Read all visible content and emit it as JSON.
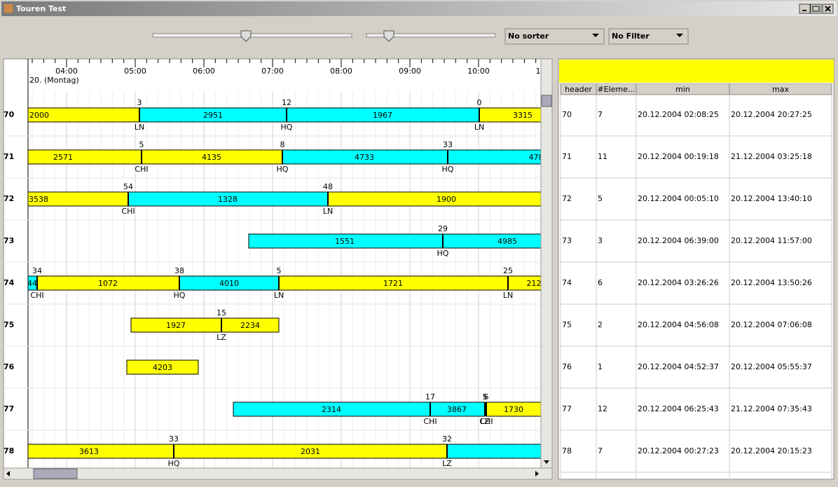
{
  "window": {
    "title": "Touren Test"
  },
  "toolbar": {
    "sorter": "No sorter",
    "filter": "No Filter"
  },
  "timeline": {
    "date": "20. (Montag)",
    "hours": [
      "04:00",
      "05:00",
      "06:00",
      "07:00",
      "08:00",
      "09:00",
      "10:00",
      "1"
    ]
  },
  "rows": [
    {
      "label": "70",
      "segments": [
        "2000",
        "2951",
        "1967",
        "3315"
      ],
      "stops": [
        {
          "above": "3",
          "below": "LN"
        },
        {
          "above": "12",
          "below": "HQ"
        },
        {
          "above": "0",
          "below": "LN"
        }
      ]
    },
    {
      "label": "71",
      "segments": [
        "2571",
        "4135",
        "4733",
        "478"
      ],
      "stops": [
        {
          "above": "5",
          "below": "CHI"
        },
        {
          "above": "8",
          "below": "HQ"
        },
        {
          "above": "33",
          "below": "HQ"
        }
      ]
    },
    {
      "label": "72",
      "segments": [
        "3538",
        "1328",
        "1900"
      ],
      "stops": [
        {
          "above": "54",
          "below": "CHI"
        },
        {
          "above": "48",
          "below": "LN"
        }
      ]
    },
    {
      "label": "73",
      "segments": [
        "1551",
        "4985"
      ],
      "stops": [
        {
          "above": "29",
          "below": "HQ"
        }
      ]
    },
    {
      "label": "74",
      "segments": [
        "44",
        "1072",
        "4010",
        "1721",
        "212"
      ],
      "stops": [
        {
          "above": "34",
          "below": "CHI"
        },
        {
          "above": "38",
          "below": "HQ"
        },
        {
          "above": "5",
          "below": "LN"
        },
        {
          "above": "25",
          "below": "LN"
        }
      ]
    },
    {
      "label": "75",
      "segments": [
        "1927",
        "2234"
      ],
      "stops": [
        {
          "above": "15",
          "below": "LZ"
        }
      ]
    },
    {
      "label": "76",
      "segments": [
        "4203"
      ],
      "stops": []
    },
    {
      "label": "77",
      "segments": [
        "2314",
        "3867",
        "1730"
      ],
      "stops": [
        {
          "above": "17",
          "below": "CHI"
        },
        {
          "above": "5",
          "below": "LZ"
        },
        {
          "above": "6",
          "below": "CHI"
        }
      ]
    },
    {
      "label": "78",
      "segments": [
        "3613",
        "2031",
        null
      ],
      "stops": [
        {
          "above": "33",
          "below": "HQ"
        },
        {
          "above": "32",
          "below": "LZ"
        }
      ]
    }
  ],
  "table": {
    "columns": [
      "header",
      "#Eleme...",
      "min",
      "max"
    ],
    "rows": [
      [
        "70",
        "7",
        "20.12.2004 02:08:25",
        "20.12.2004 20:27:25"
      ],
      [
        "71",
        "11",
        "20.12.2004 00:19:18",
        "21.12.2004 03:25:18"
      ],
      [
        "72",
        "5",
        "20.12.2004 00:05:10",
        "20.12.2004 13:40:10"
      ],
      [
        "73",
        "3",
        "20.12.2004 06:39:00",
        "20.12.2004 11:57:00"
      ],
      [
        "74",
        "6",
        "20.12.2004 03:26:26",
        "20.12.2004 13:50:26"
      ],
      [
        "75",
        "2",
        "20.12.2004 04:56:08",
        "20.12.2004 07:06:08"
      ],
      [
        "76",
        "1",
        "20.12.2004 04:52:37",
        "20.12.2004 05:55:37"
      ],
      [
        "77",
        "12",
        "20.12.2004 06:25:43",
        "21.12.2004 07:35:43"
      ],
      [
        "78",
        "7",
        "20.12.2004 00:27:23",
        "20.12.2004 20:15:23"
      ]
    ]
  }
}
